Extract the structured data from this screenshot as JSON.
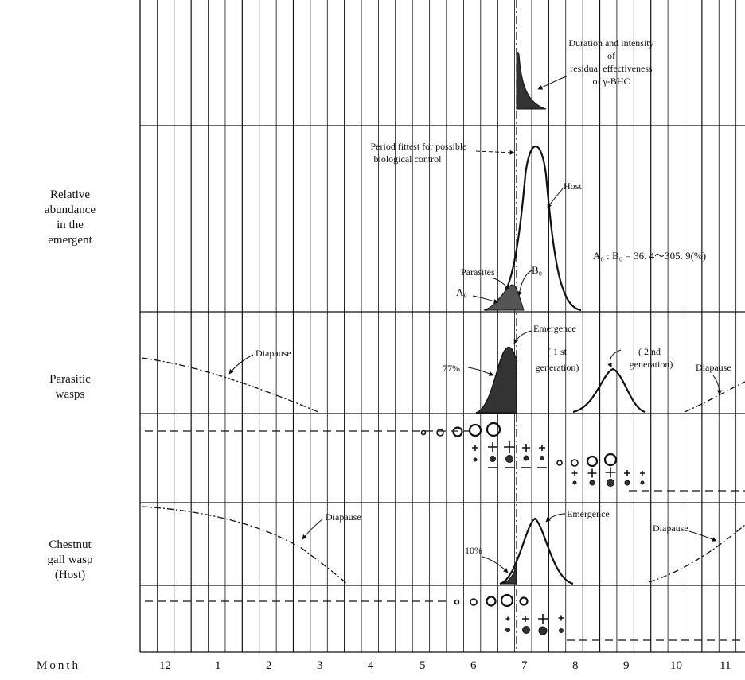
{
  "row_labels": {
    "relative": [
      "Relative",
      "abundance",
      "in the",
      "emergent"
    ],
    "parasitic": [
      "Parasitic",
      "wasps"
    ],
    "host": [
      "Chestnut",
      "gall wasp",
      "(Host)"
    ]
  },
  "axis": {
    "label": "Month",
    "months": [
      "12",
      "1",
      "2",
      "3",
      "4",
      "5",
      "6",
      "7",
      "8",
      "9",
      "10",
      "11"
    ]
  },
  "annotations": {
    "bhc": [
      "Duration and intensity",
      "of",
      "residual effectiveness",
      "of γ-BHC"
    ],
    "period": [
      "Period fittest for possible",
      "biological control"
    ],
    "host_curve": "Host",
    "ratio": "A₀ : B₀ = 36. 4～305. 9(%)",
    "parasites": "Parasites",
    "a0": "A₀",
    "b0": "B₀",
    "emergence_parasite": "Emergence",
    "first_gen": [
      "( 1 st",
      "generation)"
    ],
    "second_gen": [
      "( 2 nd",
      "generation)"
    ],
    "pct_parasite": "77%",
    "pct_host": "10%",
    "diapause": "Diapause",
    "emergence_host": "Emergence"
  }
}
